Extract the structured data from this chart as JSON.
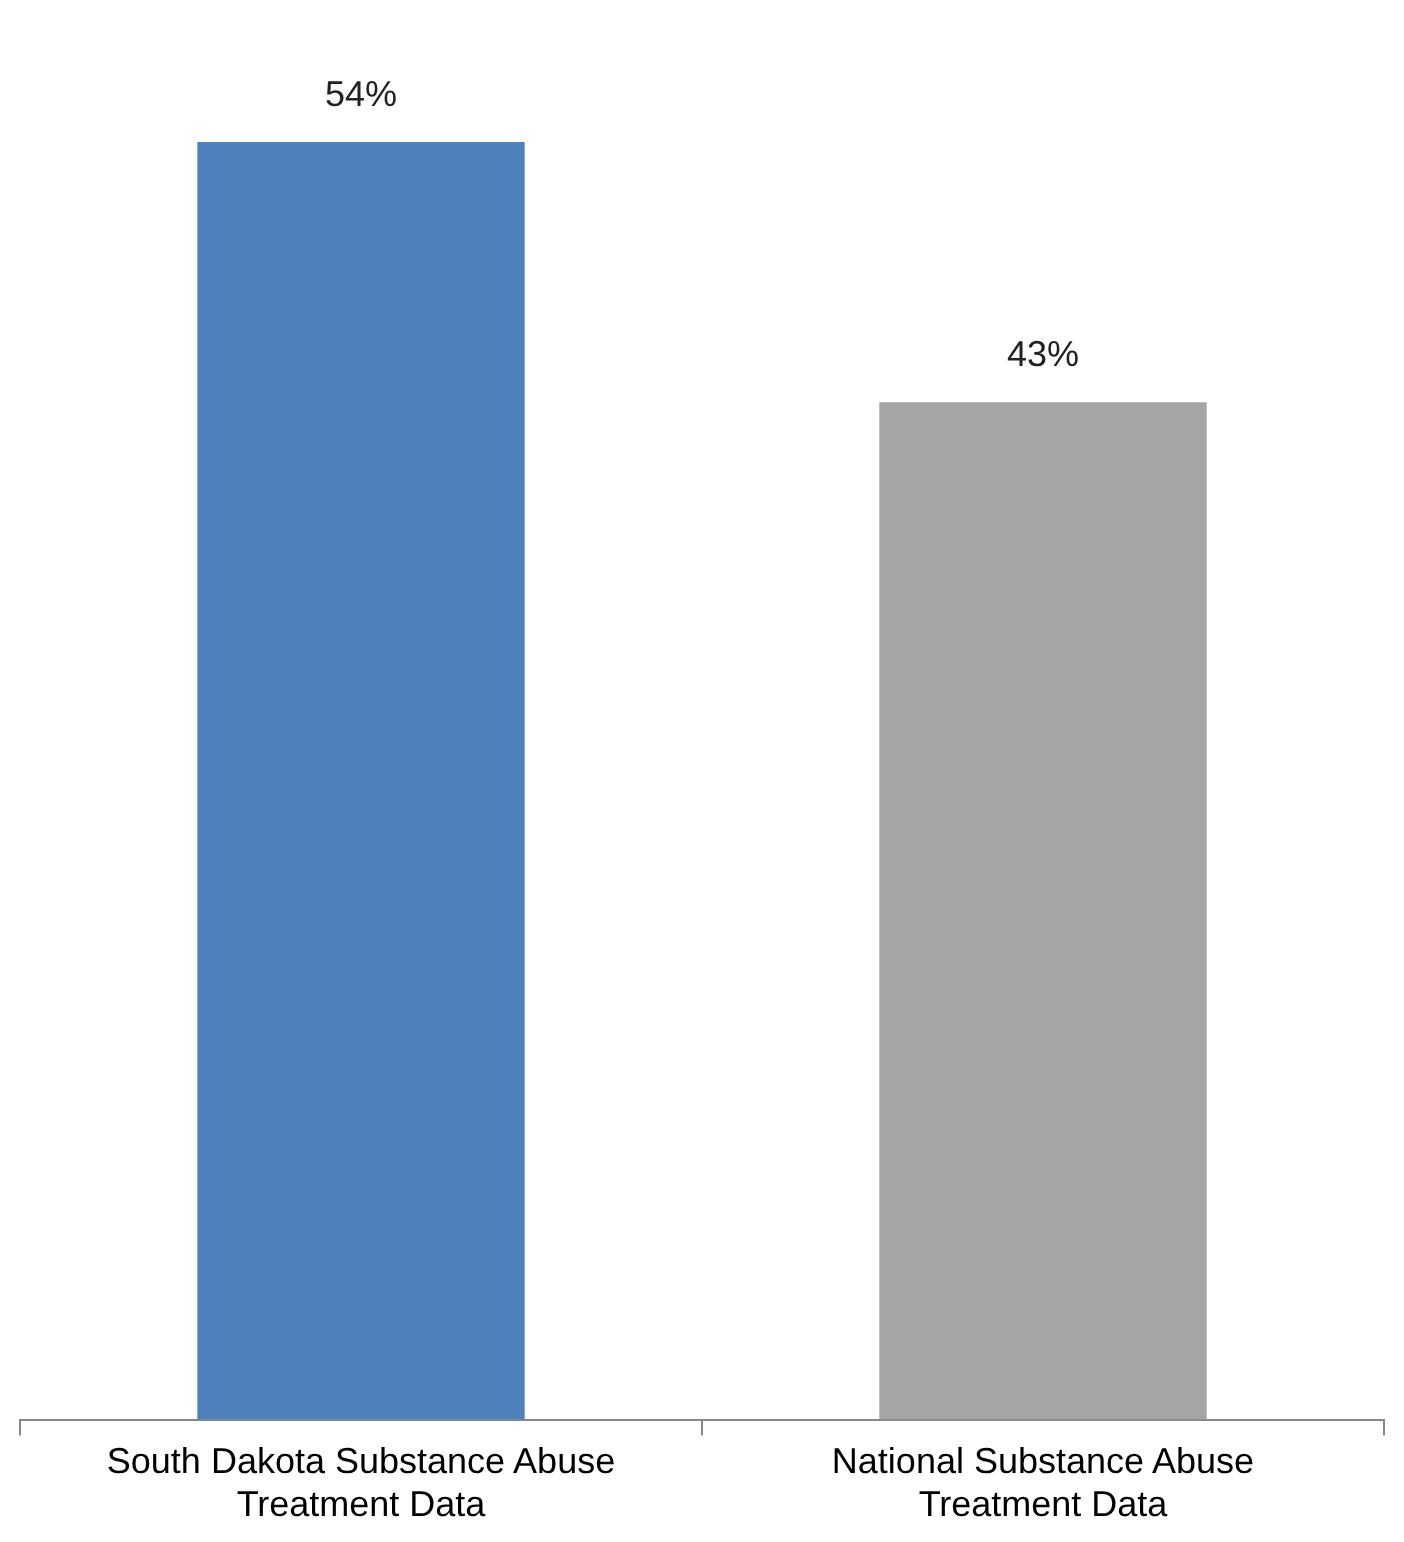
{
  "chart_data": {
    "type": "bar",
    "categories": [
      "South Dakota Substance Abuse Treatment Data",
      "National Substance Abuse Treatment Data"
    ],
    "values": [
      54,
      43
    ],
    "colors": [
      "#4f81bd",
      "#a5a5a5"
    ],
    "value_labels": [
      "54%",
      "43%"
    ],
    "legend": false,
    "grid": false
  }
}
